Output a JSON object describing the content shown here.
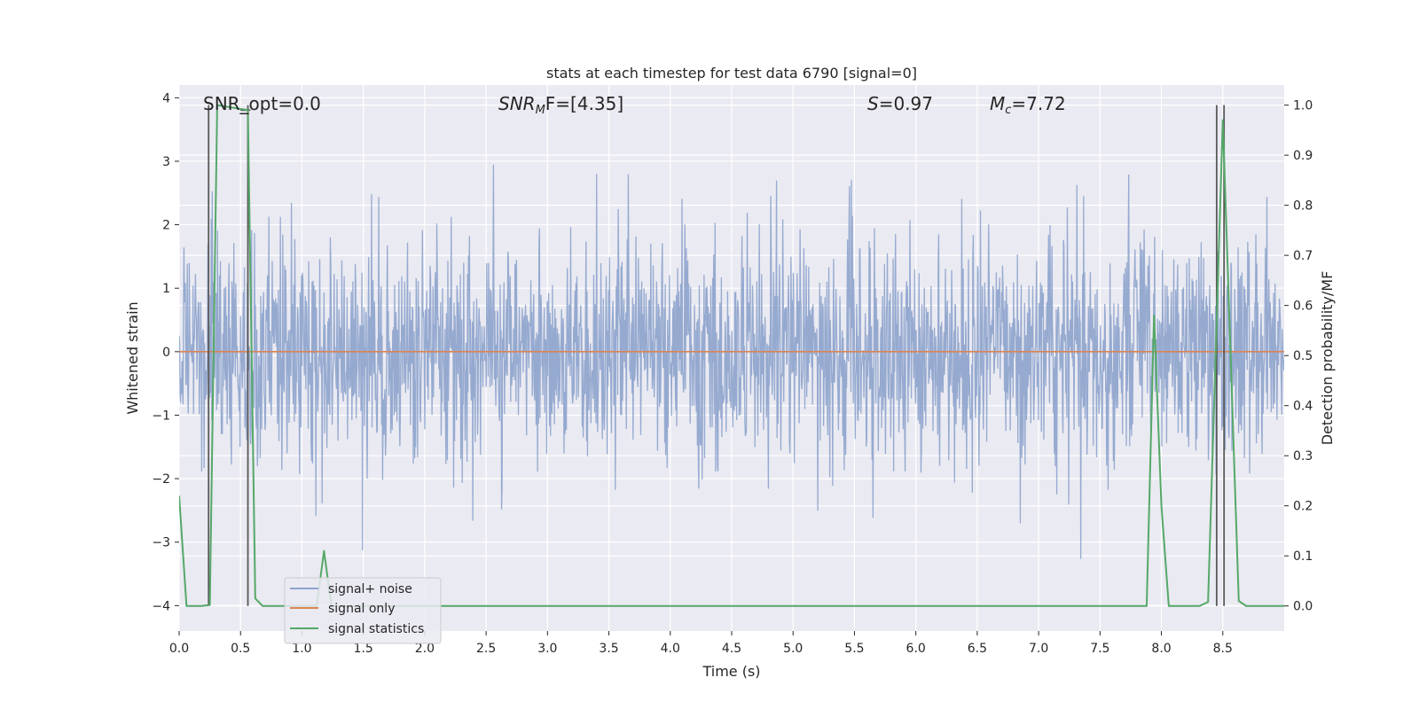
{
  "chart_data": {
    "type": "line",
    "title": "stats at each timestep for test data 6790 [signal=0]",
    "xlabel": "Time (s)",
    "ylabel_left": "Whitened strain",
    "ylabel_right": "Detection probability/MF",
    "xlim": [
      0.0,
      9.0
    ],
    "ylim_left": [
      -4.4,
      4.2
    ],
    "ylim_right": [
      -0.05,
      1.04
    ],
    "xticks": [
      0.0,
      0.5,
      1.0,
      1.5,
      2.0,
      2.5,
      3.0,
      3.5,
      4.0,
      4.5,
      5.0,
      5.5,
      6.0,
      6.5,
      7.0,
      7.5,
      8.0,
      8.5
    ],
    "xtick_labels": [
      "0.0",
      "0.5",
      "1.0",
      "1.5",
      "2.0",
      "2.5",
      "3.0",
      "3.5",
      "4.0",
      "4.5",
      "5.0",
      "5.5",
      "6.0",
      "6.5",
      "7.0",
      "7.5",
      "8.0",
      "8.5"
    ],
    "yticks_left": [
      -4,
      -3,
      -2,
      -1,
      0,
      1,
      2,
      3,
      4
    ],
    "ytick_labels_left": [
      "−4",
      "−3",
      "−2",
      "−1",
      "0",
      "1",
      "2",
      "3",
      "4"
    ],
    "yticks_right": [
      0.0,
      0.1,
      0.2,
      0.3,
      0.4,
      0.5,
      0.6,
      0.7,
      0.8,
      0.9,
      1.0
    ],
    "ytick_labels_right": [
      "0.0",
      "0.1",
      "0.2",
      "0.3",
      "0.4",
      "0.5",
      "0.6",
      "0.7",
      "0.8",
      "0.9",
      "1.0"
    ],
    "grid": true,
    "legend_position": "lower-left",
    "annotations": {
      "snr_opt": "SNR_opt=0.0",
      "snr_mf_name": "SNR",
      "snr_mf_sub": "M",
      "snr_mf_rest": "F=[4.35]",
      "s_name": "S",
      "s_rest": "=0.97",
      "mc_name": "M",
      "mc_sub": "c",
      "mc_rest": "=7.72"
    },
    "series": [
      {
        "name": "signal+ noise",
        "color": "#8da3cc",
        "axis": "left",
        "kind": "noise",
        "t_range": [
          0.0,
          9.0
        ],
        "samples": 2304,
        "core_sigma": 0.75,
        "envelope_range": [
          -3.45,
          3.82
        ],
        "seed": 6790
      },
      {
        "name": "signal only",
        "color": "#dd8452",
        "axis": "left",
        "x": [
          0.0,
          9.0
        ],
        "y": [
          0.0,
          0.0
        ]
      },
      {
        "name": "signal statistics",
        "color": "#55a868",
        "axis": "right",
        "x": [
          0.0,
          0.06,
          0.18,
          0.25,
          0.31,
          0.56,
          0.62,
          0.68,
          1.12,
          1.18,
          1.24,
          7.88,
          7.94,
          8.0,
          8.06,
          8.31,
          8.38,
          8.5,
          8.63,
          8.69,
          8.75,
          9.0
        ],
        "y": [
          0.22,
          0.0,
          0.0,
          0.002,
          1.0,
          0.99,
          0.015,
          0.0,
          0.0,
          0.11,
          0.0,
          0.0,
          0.58,
          0.2,
          0.0,
          0.0,
          0.008,
          0.97,
          0.01,
          0.0,
          0.0,
          0.0
        ]
      }
    ],
    "markers": {
      "color": "#595959",
      "vlines": [
        {
          "x": 0.24,
          "y0": 0.0,
          "y1": 1.0
        },
        {
          "x": 0.56,
          "y0": 0.0,
          "y1": 1.0
        },
        {
          "x": 8.45,
          "y0": 0.0,
          "y1": 1.0
        },
        {
          "x": 8.51,
          "y0": 0.0,
          "y1": 1.0
        }
      ],
      "hticks": [
        {
          "x0": 0.5,
          "x1": 0.58,
          "y": 0.99
        }
      ]
    }
  }
}
